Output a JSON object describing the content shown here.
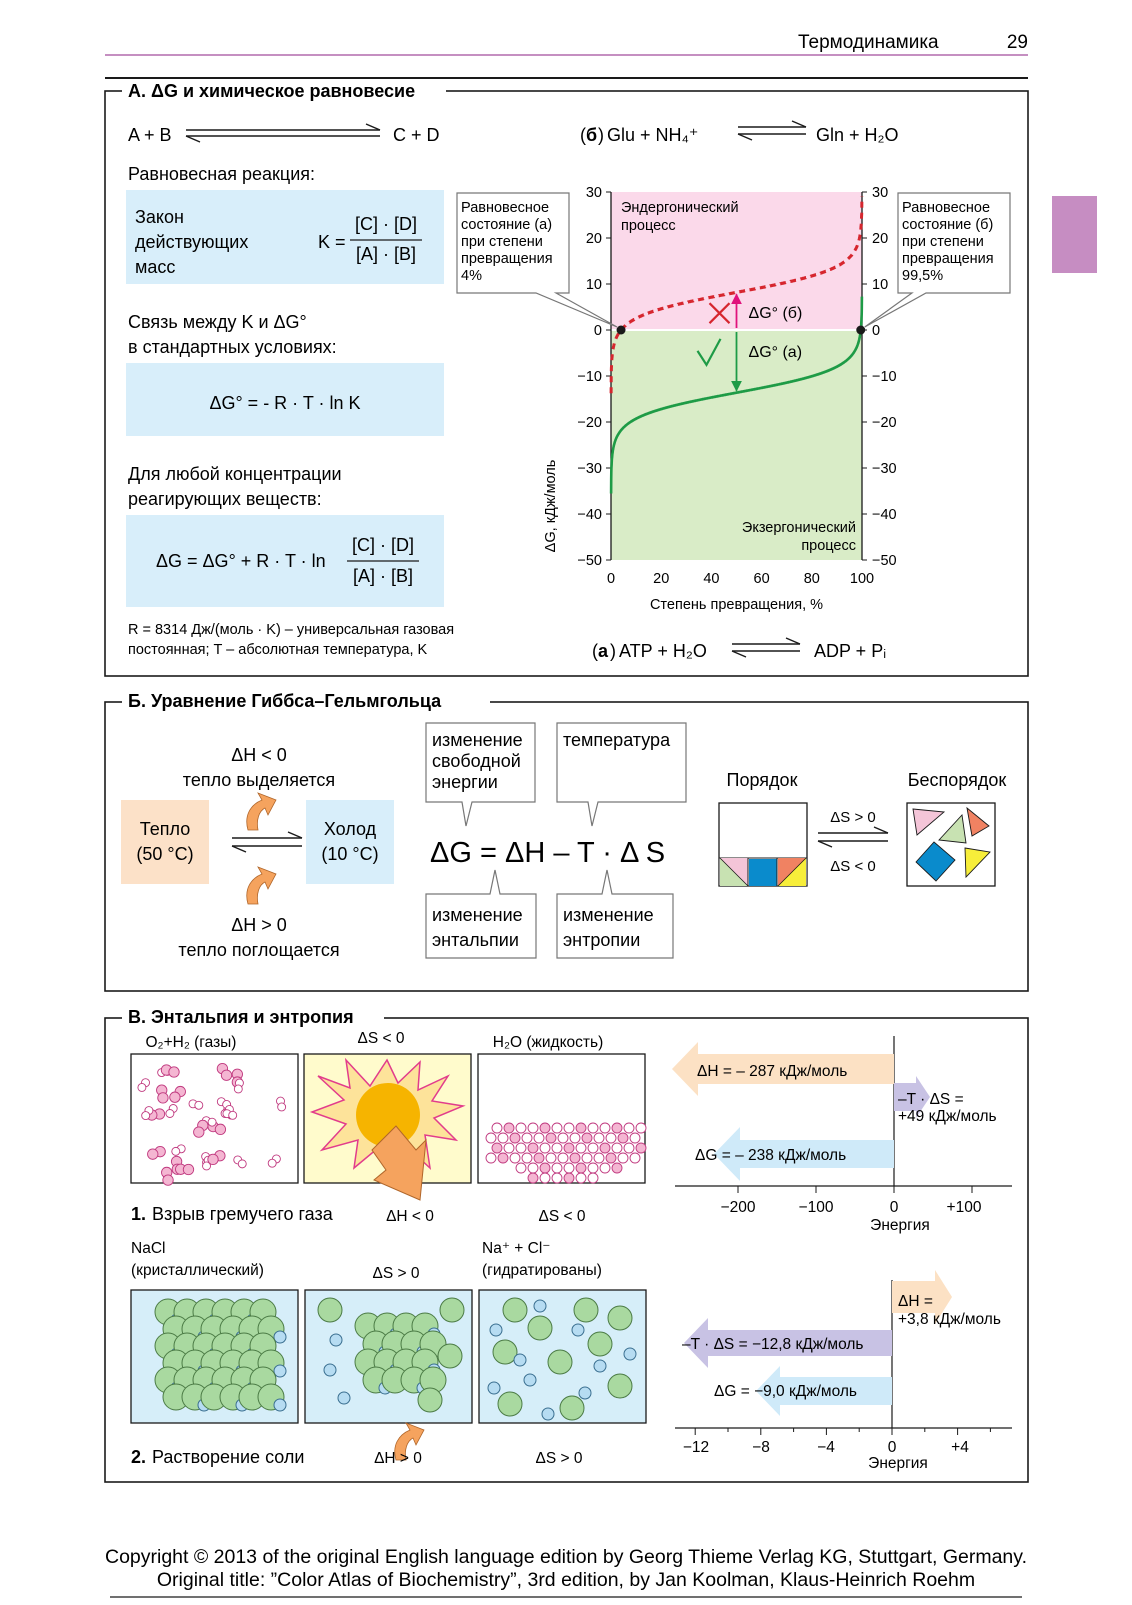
{
  "header": {
    "section": "Термодинамика",
    "page": "29"
  },
  "panelA": {
    "title": "A. ΔG и химическое равновесие",
    "eq1_left": "A + B",
    "eq1_right": "C + D",
    "eq2_label": "б",
    "eq2_left": "Glu + NH₄⁺",
    "eq2_right": "Gln + H₂O",
    "eq3_label": "a",
    "eq3_left": "ATP + H₂O",
    "eq3_right": "ADP + Pᵢ",
    "equil_heading": "Равновесная реакция:",
    "mass_action": [
      "Закон",
      "действующих",
      "масс"
    ],
    "k_prefix": "K =",
    "frac_num": "[C] · [D]",
    "frac_den": "[A] · [B]",
    "relation_heading": [
      "Связь между K и ΔG°",
      "в стандартных условиях:"
    ],
    "std_formula": "ΔG°  = - R · T · ln  K",
    "any_heading": [
      "Для любой концентрации",
      "реагирующих веществ:"
    ],
    "any_formula_prefix": "ΔG  =  ΔG° + R · T · ln",
    "footnote": [
      "R = 8314 Дж/(моль · K) – универсальная газовая",
      "постоянная; T – абсолютная температура, K"
    ]
  },
  "chart_data": {
    "type": "line",
    "xlabel": "Степень превращения, %",
    "ylabel": "ΔG, кДж/моль",
    "xlim": [
      0,
      100
    ],
    "ylim": [
      -50,
      30
    ],
    "x_ticks": [
      0,
      20,
      40,
      60,
      80,
      100
    ],
    "y_ticks_left": [
      "30",
      "20",
      "10",
      "0",
      "−10",
      "−20",
      "−30",
      "−40",
      "−50"
    ],
    "y_ticks_right": [
      "30",
      "20",
      "10",
      "0",
      "−10",
      "−20",
      "−30",
      "−40",
      "−50"
    ],
    "series": [
      {
        "style": "dashed",
        "color": "#d6262e",
        "equilibrium_x": 4
      },
      {
        "style": "solid",
        "color": "#1e9b46",
        "equilibrium_x": 99.5
      }
    ],
    "region_top_label": [
      "Эндергонический",
      "процесс"
    ],
    "region_bottom_label": [
      "Экзергонический",
      "процесс"
    ],
    "arrow_b_label": "ΔG° (б)",
    "arrow_a_label": "ΔG° (a)",
    "callout_left": [
      "Равновесное",
      "состояние (a)",
      "при степени",
      "превращения",
      "4%"
    ],
    "callout_right": [
      "Равновесное",
      "состояние (б)",
      "при степени",
      "превращения",
      "99,5%"
    ]
  },
  "panelB": {
    "title": "Б. Уравнение Гиббса–Гельмгольца",
    "dh_neg": "ΔH < 0",
    "heat_released": "тепло выделяется",
    "dh_pos": "ΔH > 0",
    "heat_absorbed": "тепло поглощается",
    "warm": [
      "Тепло",
      "(50 °C)"
    ],
    "cold": [
      "Холод",
      "(10 °C)"
    ],
    "bubble_free_energy": [
      "изменение",
      "свободной",
      "энергии"
    ],
    "bubble_temperature": "температура",
    "bubble_enthalpy": [
      "изменение",
      "энтальпии"
    ],
    "bubble_entropy": [
      "изменение",
      "энтропии"
    ],
    "equation": "ΔG = ΔH  – T ·  Δ S",
    "order": "Порядок",
    "disorder": "Беспорядок",
    "ds_pos": "ΔS > 0",
    "ds_neg": "ΔS < 0"
  },
  "panelC": {
    "title": "В. Энтальпия и энтропия",
    "gas_label": "O₂+H₂ (газы)",
    "ds_lt": "ΔS < 0",
    "water_label": "H₂O (жидкость)",
    "row1_caption_num": "1.",
    "row1_caption": "Взрыв гремучего газа",
    "row1_dh": "ΔH < 0",
    "row1_ds": "ΔS < 0",
    "nacl": [
      "NaCl",
      "(кристаллический)"
    ],
    "ds_gt": "ΔS > 0",
    "ions": [
      "Na⁺ + Cl⁻",
      "(гидратированы)"
    ],
    "row2_caption_num": "2.",
    "row2_caption": "Растворение соли",
    "row2_dh": "ΔH > 0",
    "row2_ds": "ΔS > 0",
    "bar1": {
      "dh": "ΔH = – 287 кДж/моль",
      "tds": [
        "–T · ΔS =",
        "+49 кДж/моль"
      ],
      "dg": "ΔG = – 238 кДж/моль",
      "ticks": [
        "−200",
        "−100",
        "0",
        "+100"
      ],
      "axis": "Энергия"
    },
    "bar2": {
      "dh": [
        "ΔH =",
        "+3,8 кДж/моль"
      ],
      "tds": "–T · ΔS = −12,8 кДж/моль",
      "dg": "ΔG = −9,0 кДж/моль",
      "ticks": [
        "−12",
        "−8",
        "−4",
        "0",
        "+4"
      ],
      "axis": "Энергия"
    }
  },
  "footer": [
    "Copyright © 2013 of the original English language edition by Georg Thieme Verlag KG, Stuttgart, Germany.",
    "Original title: ”Color Atlas of Biochemistry”, 3rd edition, by Jan Koolman, Klaus-Heinrich Roehm"
  ]
}
